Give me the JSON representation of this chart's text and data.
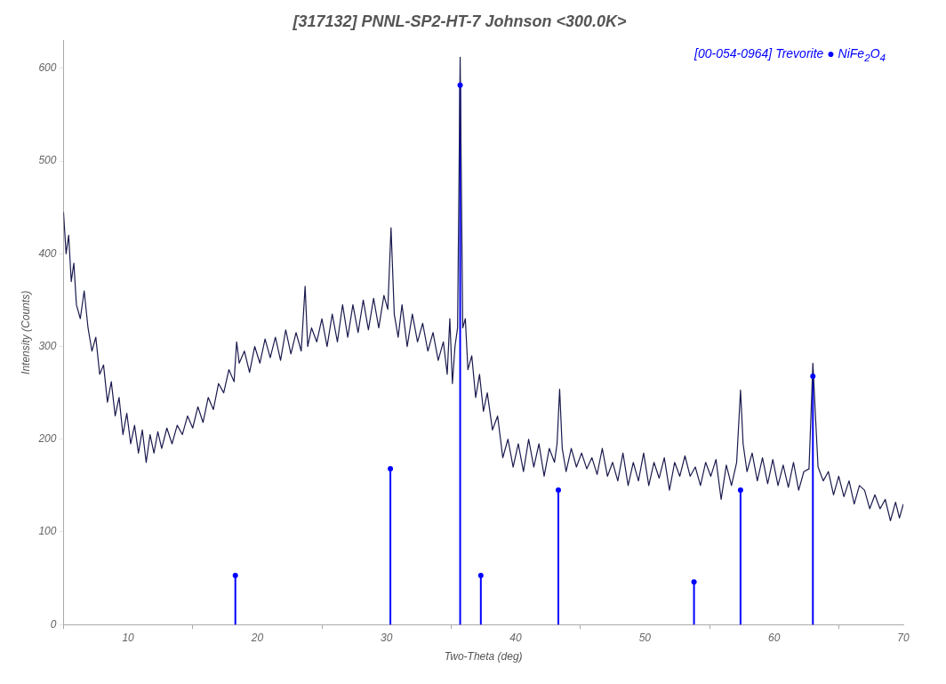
{
  "chart_data": {
    "type": "line",
    "title": "[317132] PNNL-SP2-HT-7 Johnson <300.0K>",
    "xlabel": "Two-Theta (deg)",
    "ylabel": "Intensity (Counts)",
    "xlim": [
      5,
      70
    ],
    "xticks": [
      10,
      20,
      30,
      40,
      50,
      60,
      70
    ],
    "ylim": [
      0,
      630
    ],
    "yticks": [
      0,
      100,
      200,
      300,
      400,
      500,
      600
    ],
    "grid": false,
    "marker": "none",
    "line_style": "solid",
    "series": [
      {
        "color": "#1a1a4e",
        "x": [
          5.0,
          5.2,
          5.4,
          5.6,
          5.8,
          6.0,
          6.3,
          6.6,
          6.9,
          7.2,
          7.5,
          7.8,
          8.1,
          8.4,
          8.7,
          9.0,
          9.3,
          9.6,
          9.9,
          10.2,
          10.5,
          10.8,
          11.1,
          11.4,
          11.7,
          12.0,
          12.3,
          12.6,
          13.0,
          13.4,
          13.8,
          14.2,
          14.6,
          15.0,
          15.4,
          15.8,
          16.2,
          16.6,
          17.0,
          17.4,
          17.8,
          18.2,
          18.4,
          18.6,
          19.0,
          19.4,
          19.8,
          20.2,
          20.6,
          21.0,
          21.4,
          21.8,
          22.2,
          22.6,
          23.0,
          23.4,
          23.7,
          23.9,
          24.2,
          24.6,
          25.0,
          25.4,
          25.8,
          26.2,
          26.6,
          27.0,
          27.4,
          27.8,
          28.2,
          28.6,
          29.0,
          29.4,
          29.8,
          30.1,
          30.35,
          30.6,
          30.9,
          31.2,
          31.6,
          32.0,
          32.4,
          32.8,
          33.2,
          33.6,
          34.0,
          34.4,
          34.7,
          34.9,
          35.1,
          35.3,
          35.5,
          35.7,
          35.9,
          36.1,
          36.3,
          36.6,
          36.9,
          37.2,
          37.5,
          37.8,
          38.2,
          38.6,
          39.0,
          39.4,
          39.8,
          40.2,
          40.6,
          41.0,
          41.4,
          41.8,
          42.2,
          42.6,
          43.0,
          43.2,
          43.4,
          43.6,
          43.9,
          44.3,
          44.7,
          45.1,
          45.5,
          45.9,
          46.3,
          46.7,
          47.1,
          47.5,
          47.9,
          48.3,
          48.7,
          49.1,
          49.5,
          49.9,
          50.3,
          50.7,
          51.1,
          51.5,
          51.9,
          52.3,
          52.7,
          53.1,
          53.5,
          53.9,
          54.3,
          54.7,
          55.1,
          55.5,
          55.9,
          56.3,
          56.7,
          57.1,
          57.4,
          57.6,
          57.9,
          58.3,
          58.7,
          59.1,
          59.5,
          59.9,
          60.3,
          60.7,
          61.1,
          61.5,
          61.9,
          62.3,
          62.7,
          63.0,
          63.2,
          63.4,
          63.8,
          64.2,
          64.6,
          65.0,
          65.4,
          65.8,
          66.2,
          66.6,
          67.0,
          67.4,
          67.8,
          68.2,
          68.6,
          69.0,
          69.4,
          69.7,
          70.0
        ],
        "values": [
          445,
          400,
          420,
          370,
          390,
          345,
          330,
          360,
          320,
          295,
          310,
          270,
          280,
          240,
          262,
          225,
          245,
          205,
          228,
          195,
          215,
          185,
          210,
          175,
          205,
          185,
          208,
          190,
          212,
          195,
          215,
          205,
          225,
          212,
          235,
          218,
          245,
          232,
          260,
          250,
          275,
          262,
          305,
          282,
          295,
          272,
          300,
          282,
          308,
          288,
          310,
          285,
          318,
          292,
          315,
          295,
          365,
          300,
          320,
          305,
          330,
          300,
          335,
          305,
          345,
          310,
          345,
          315,
          350,
          318,
          352,
          320,
          355,
          340,
          428,
          335,
          310,
          345,
          300,
          335,
          305,
          325,
          295,
          315,
          285,
          305,
          270,
          330,
          260,
          300,
          320,
          612,
          320,
          330,
          275,
          290,
          245,
          270,
          230,
          250,
          210,
          225,
          180,
          200,
          170,
          195,
          165,
          200,
          170,
          195,
          160,
          190,
          175,
          195,
          254,
          190,
          165,
          190,
          170,
          185,
          168,
          180,
          162,
          190,
          160,
          175,
          155,
          185,
          150,
          175,
          155,
          185,
          150,
          175,
          158,
          180,
          145,
          175,
          160,
          182,
          160,
          170,
          150,
          175,
          160,
          178,
          135,
          172,
          150,
          175,
          253,
          195,
          165,
          185,
          155,
          180,
          152,
          178,
          150,
          172,
          148,
          175,
          145,
          165,
          168,
          282,
          225,
          170,
          155,
          165,
          140,
          160,
          138,
          155,
          130,
          150,
          145,
          125,
          140,
          125,
          135,
          112,
          132,
          115,
          130
        ]
      },
      {
        "type": "lollipop",
        "name": "[00-054-0964] Trevorite ● NiFe$_{2}$O$_{4}$",
        "color": "#0000ff",
        "marker": "circle",
        "x": [
          18.3,
          30.3,
          35.7,
          37.3,
          43.3,
          53.8,
          57.4,
          63.0
        ],
        "values": [
          53,
          168,
          582,
          53,
          145,
          46,
          145,
          268
        ]
      }
    ]
  }
}
